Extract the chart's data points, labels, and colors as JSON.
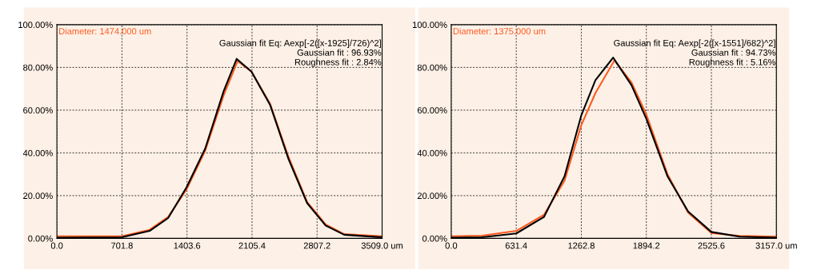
{
  "chart_data": [
    {
      "type": "line",
      "xlim": [
        0,
        3509
      ],
      "ylim": [
        0,
        100
      ],
      "xticks": [
        {
          "value": 0,
          "label": "0.0"
        },
        {
          "value": 701.8,
          "label": "701.8"
        },
        {
          "value": 1403.6,
          "label": "1403.6"
        },
        {
          "value": 2105.4,
          "label": "2105.4"
        },
        {
          "value": 2807.2,
          "label": "2807.2"
        },
        {
          "value": 3509,
          "label": "3509.0 um"
        }
      ],
      "yticks": [
        {
          "value": 0,
          "label": "0.00%"
        },
        {
          "value": 20,
          "label": "20.00%"
        },
        {
          "value": 40,
          "label": "40.00%"
        },
        {
          "value": 60,
          "label": "60.00%"
        },
        {
          "value": 80,
          "label": "80.00%"
        },
        {
          "value": 100,
          "label": "100.00%"
        }
      ],
      "grid": true,
      "legend": false,
      "marker": "none",
      "line_style": "solid",
      "annotations": [
        "Diameter: 1474.000 um",
        "Gaussian fit Eq: Aexp[-2([x-1925]/726)^2]\nGaussian fit : 96.93%\nRoughness fit : 2.84%"
      ],
      "series": [
        {
          "color": "#ff5a1f",
          "x": [
            0,
            700,
            1000,
            1200,
            1400,
            1600,
            1800,
            1950,
            2100,
            2300,
            2500,
            2700,
            2900,
            3100,
            3509
          ],
          "values": [
            1,
            1,
            4,
            10,
            23,
            41,
            67,
            83,
            78,
            63,
            38,
            17,
            6.5,
            2,
            1
          ]
        },
        {
          "color": "#000000",
          "x": [
            0,
            700,
            1000,
            1200,
            1400,
            1600,
            1800,
            1940,
            2100,
            2300,
            2500,
            2700,
            2900,
            3100,
            3509
          ],
          "values": [
            0.3,
            0.5,
            3.5,
            9.5,
            24,
            42,
            69,
            84,
            78,
            62.5,
            37,
            16.5,
            6,
            1.7,
            0.5
          ]
        }
      ]
    },
    {
      "type": "line",
      "xlim": [
        0,
        3157
      ],
      "ylim": [
        0,
        100
      ],
      "xticks": [
        {
          "value": 0,
          "label": "0.0"
        },
        {
          "value": 631.4,
          "label": "631.4"
        },
        {
          "value": 1262.8,
          "label": "1262.8"
        },
        {
          "value": 1894.2,
          "label": "1894.2"
        },
        {
          "value": 2525.6,
          "label": "2525.6"
        },
        {
          "value": 3157,
          "label": "3157.0 um"
        }
      ],
      "yticks": [
        {
          "value": 0,
          "label": "0.00%"
        },
        {
          "value": 20,
          "label": "20.00%"
        },
        {
          "value": 40,
          "label": "40.00%"
        },
        {
          "value": 60,
          "label": "60.00%"
        },
        {
          "value": 80,
          "label": "80.00%"
        },
        {
          "value": 100,
          "label": "100.00%"
        }
      ],
      "grid": true,
      "legend": false,
      "marker": "none",
      "line_style": "solid",
      "annotations": [
        "Diameter: 1375.000 um",
        "Gaussian fit Eq: Aexp[-2([x-1551]/682)^2]\nGaussian fit : 94.73%\nRoughness fit : 5.16%"
      ],
      "series": [
        {
          "color": "#ff5a1f",
          "x": [
            0,
            300,
            631,
            900,
            1100,
            1263,
            1400,
            1585,
            1750,
            1894,
            2100,
            2300,
            2526,
            2800,
            3157
          ],
          "values": [
            1,
            1.3,
            3.5,
            11,
            27,
            53,
            68,
            83.3,
            73,
            58,
            30,
            12,
            2.5,
            1.2,
            0.8
          ]
        },
        {
          "color": "#000000",
          "x": [
            0,
            300,
            631,
            900,
            1100,
            1263,
            1400,
            1572,
            1750,
            1894,
            2100,
            2300,
            2526,
            2800,
            3157
          ],
          "values": [
            0.3,
            0.5,
            2.3,
            10,
            29,
            57.6,
            74,
            84.6,
            71.7,
            56,
            29,
            12.6,
            3,
            0.8,
            0.3
          ]
        }
      ]
    }
  ]
}
